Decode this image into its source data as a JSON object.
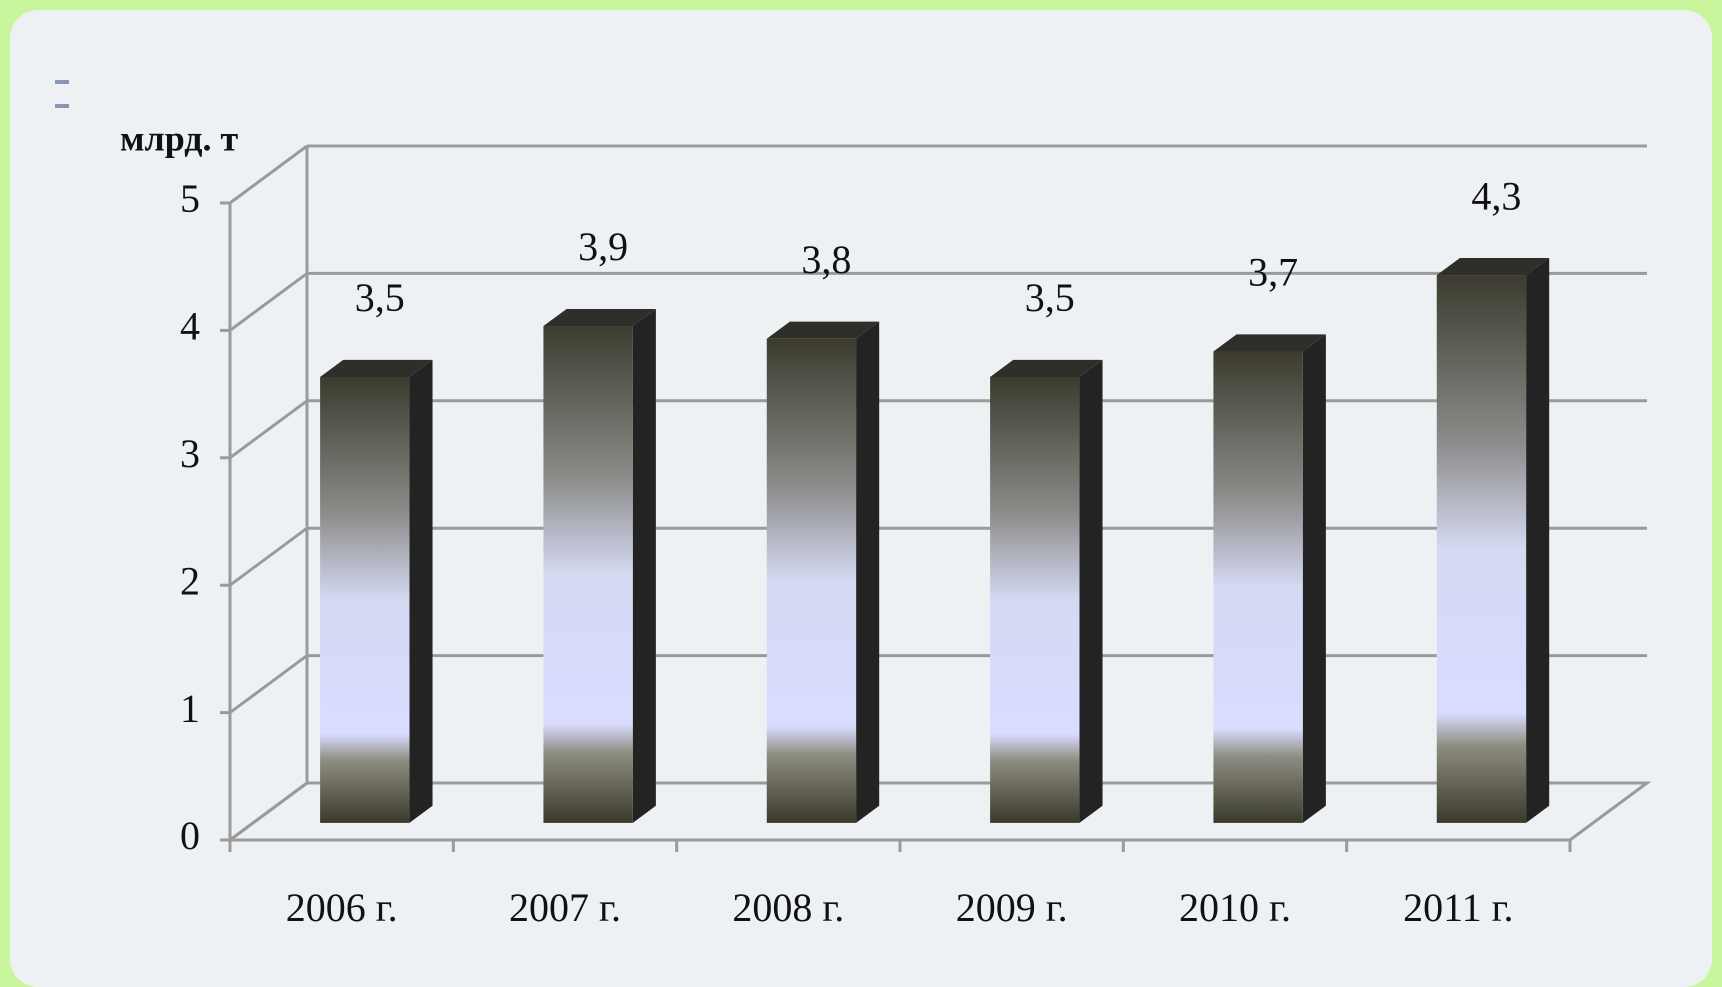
{
  "chart_data": {
    "type": "bar",
    "y_label": "млрд. т",
    "categories": [
      "2006 г.",
      "2007 г.",
      "2008 г.",
      "2009 г.",
      "2010 г.",
      "2011 г."
    ],
    "values": [
      3.5,
      3.9,
      3.8,
      3.5,
      3.7,
      4.3
    ],
    "value_labels": [
      "3,5",
      "3,9",
      "3,8",
      "3,5",
      "3,7",
      "4,3"
    ],
    "ylim": [
      0,
      5
    ],
    "yticks": [
      0,
      1,
      2,
      3,
      4,
      5
    ],
    "grid": true
  }
}
